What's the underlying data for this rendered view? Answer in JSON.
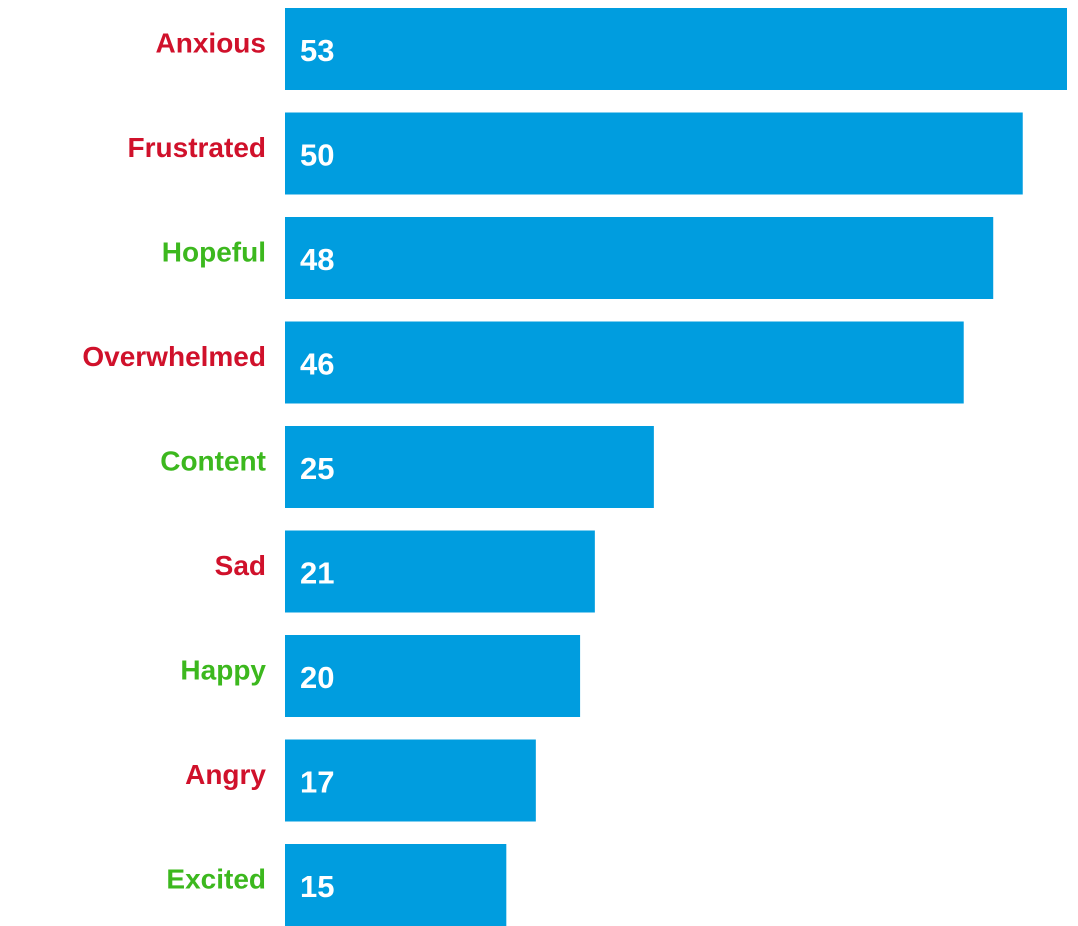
{
  "chart_data": {
    "type": "bar",
    "orientation": "horizontal",
    "categories": [
      "Anxious",
      "Frustrated",
      "Hopeful",
      "Overwhelmed",
      "Content",
      "Sad",
      "Happy",
      "Angry",
      "Excited"
    ],
    "values": [
      53,
      50,
      48,
      46,
      25,
      21,
      20,
      17,
      15
    ],
    "color": "#009ddf",
    "category_colors": [
      "#d0112b",
      "#d0112b",
      "#3cb81e",
      "#d0112b",
      "#3cb81e",
      "#d0112b",
      "#3cb81e",
      "#d0112b",
      "#3cb81e"
    ]
  }
}
